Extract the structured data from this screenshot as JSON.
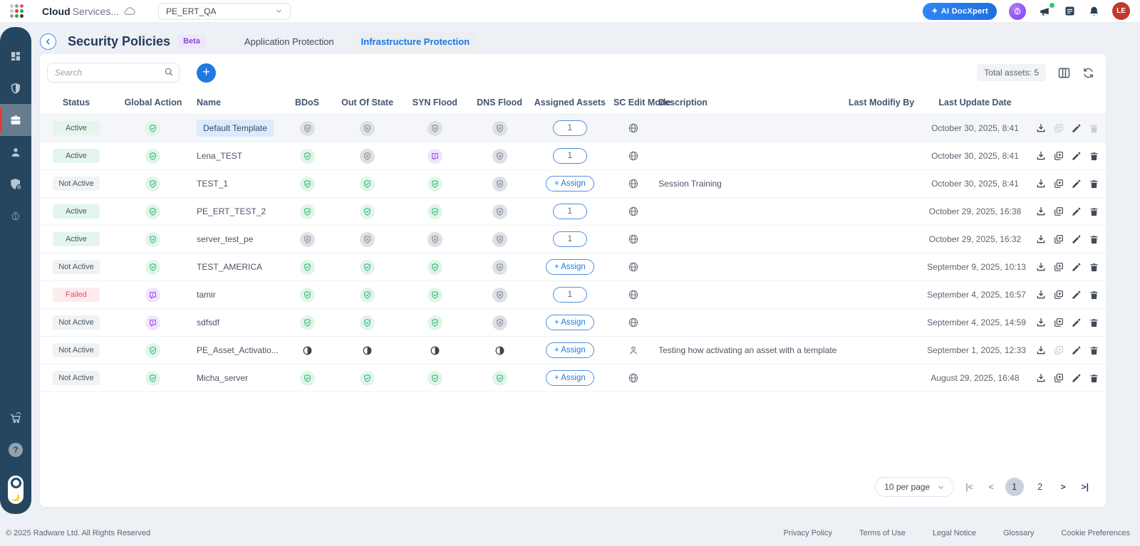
{
  "topbar": {
    "brand": {
      "bold": "Cloud",
      "rest": "Services..."
    },
    "account_dropdown": "PE_ERT_QA",
    "ai_button": "AI DocXpert",
    "avatar": "LE"
  },
  "header": {
    "title": "Security Policies",
    "beta_badge": "Beta",
    "tabs": [
      {
        "label": "Application Protection",
        "active": false
      },
      {
        "label": "Infrastructure Protection",
        "active": true
      }
    ]
  },
  "toolbar": {
    "search_placeholder": "Search",
    "total_assets": "Total assets: 5"
  },
  "table": {
    "columns": [
      "Status",
      "Global Action",
      "Name",
      "BDoS",
      "Out Of State",
      "SYN Flood",
      "DNS Flood",
      "Assigned Assets",
      "SC Edit Mode",
      "Description",
      "Last Modifiy By",
      "Last Update Date"
    ],
    "rows": [
      {
        "status": "Active",
        "status_type": "active",
        "global_action": "shield-check",
        "name": "Default Template",
        "name_highlight": true,
        "selected": true,
        "bdos": "shield-x",
        "out_of_state": "shield-x",
        "syn_flood": "shield-x",
        "dns_flood": "shield-x",
        "assigned": {
          "type": "count",
          "label": "1"
        },
        "sc_edit_mode": "globe",
        "description": "",
        "last_modified_by": "",
        "last_update": "October 30, 2025, 8:41",
        "disabled_actions": [
          "duplicate",
          "delete"
        ]
      },
      {
        "status": "Active",
        "status_type": "active",
        "global_action": "shield-check",
        "name": "Lena_TEST",
        "name_highlight": false,
        "selected": false,
        "bdos": "shield-check",
        "out_of_state": "shield-x",
        "syn_flood": "report",
        "dns_flood": "shield-x",
        "assigned": {
          "type": "count",
          "label": "1"
        },
        "sc_edit_mode": "globe",
        "description": "",
        "last_modified_by": "",
        "last_update": "October 30, 2025, 8:41",
        "disabled_actions": []
      },
      {
        "status": "Not Active",
        "status_type": "not-active",
        "global_action": "shield-check",
        "name": "TEST_1",
        "name_highlight": false,
        "selected": false,
        "bdos": "shield-check",
        "out_of_state": "shield-check",
        "syn_flood": "shield-check",
        "dns_flood": "shield-x",
        "assigned": {
          "type": "assign",
          "label": "+ Assign"
        },
        "sc_edit_mode": "globe",
        "description": "Session Training",
        "last_modified_by": "",
        "last_update": "October 30, 2025, 8:41",
        "disabled_actions": []
      },
      {
        "status": "Active",
        "status_type": "active",
        "global_action": "shield-check",
        "name": "PE_ERT_TEST_2",
        "name_highlight": false,
        "selected": false,
        "bdos": "shield-check",
        "out_of_state": "shield-check",
        "syn_flood": "shield-check",
        "dns_flood": "shield-x",
        "assigned": {
          "type": "count",
          "label": "1"
        },
        "sc_edit_mode": "globe",
        "description": "",
        "last_modified_by": "",
        "last_update": "October 29, 2025, 16:38",
        "disabled_actions": []
      },
      {
        "status": "Active",
        "status_type": "active",
        "global_action": "shield-check",
        "name": "server_test_pe",
        "name_highlight": false,
        "selected": false,
        "bdos": "shield-x",
        "out_of_state": "shield-x",
        "syn_flood": "shield-x",
        "dns_flood": "shield-x",
        "assigned": {
          "type": "count",
          "label": "1"
        },
        "sc_edit_mode": "globe",
        "description": "",
        "last_modified_by": "",
        "last_update": "October 29, 2025, 16:32",
        "disabled_actions": []
      },
      {
        "status": "Not Active",
        "status_type": "not-active",
        "global_action": "shield-check",
        "name": "TEST_AMERICA",
        "name_highlight": false,
        "selected": false,
        "bdos": "shield-check",
        "out_of_state": "shield-check",
        "syn_flood": "shield-check",
        "dns_flood": "shield-x",
        "assigned": {
          "type": "assign",
          "label": "+ Assign"
        },
        "sc_edit_mode": "globe",
        "description": "",
        "last_modified_by": "",
        "last_update": "September 9, 2025, 10:13",
        "disabled_actions": []
      },
      {
        "status": "Failed",
        "status_type": "failed",
        "global_action": "report",
        "name": "tamir",
        "name_highlight": false,
        "selected": false,
        "bdos": "shield-check",
        "out_of_state": "shield-check",
        "syn_flood": "shield-check",
        "dns_flood": "shield-x",
        "assigned": {
          "type": "count",
          "label": "1"
        },
        "sc_edit_mode": "globe",
        "description": "",
        "last_modified_by": "",
        "last_update": "September 4, 2025, 16:57",
        "disabled_actions": []
      },
      {
        "status": "Not Active",
        "status_type": "not-active",
        "global_action": "report",
        "name": "sdfsdf",
        "name_highlight": false,
        "selected": false,
        "bdos": "shield-check",
        "out_of_state": "shield-check",
        "syn_flood": "shield-check",
        "dns_flood": "shield-x",
        "assigned": {
          "type": "assign",
          "label": "+ Assign"
        },
        "sc_edit_mode": "globe",
        "description": "",
        "last_modified_by": "",
        "last_update": "September 4, 2025, 14:59",
        "disabled_actions": []
      },
      {
        "status": "Not Active",
        "status_type": "not-active",
        "global_action": "shield-check",
        "name": "PE_Asset_Activatio...",
        "name_highlight": false,
        "selected": false,
        "bdos": "half",
        "out_of_state": "half",
        "syn_flood": "half",
        "dns_flood": "half",
        "assigned": {
          "type": "assign",
          "label": "+ Assign"
        },
        "sc_edit_mode": "location",
        "description": "Testing how activating an asset with a template works",
        "last_modified_by": "",
        "last_update": "September 1, 2025, 12:33",
        "disabled_actions": [
          "duplicate"
        ]
      },
      {
        "status": "Not Active",
        "status_type": "not-active",
        "global_action": "shield-check",
        "name": "Micha_server",
        "name_highlight": false,
        "selected": false,
        "bdos": "shield-check",
        "out_of_state": "shield-check",
        "syn_flood": "shield-check",
        "dns_flood": "shield-check",
        "assigned": {
          "type": "assign",
          "label": "+ Assign"
        },
        "sc_edit_mode": "globe",
        "description": "",
        "last_modified_by": "",
        "last_update": "August 29, 2025, 16:48",
        "disabled_actions": []
      }
    ]
  },
  "pagination": {
    "page_size": "10 per page",
    "pages": [
      "1",
      "2"
    ],
    "current": "1"
  },
  "footer": {
    "copyright": "© 2025 Radware Ltd. All Rights Reserved",
    "links": [
      "Privacy Policy",
      "Terms of Use",
      "Legal Notice",
      "Glossary",
      "Cookie Preferences"
    ]
  }
}
